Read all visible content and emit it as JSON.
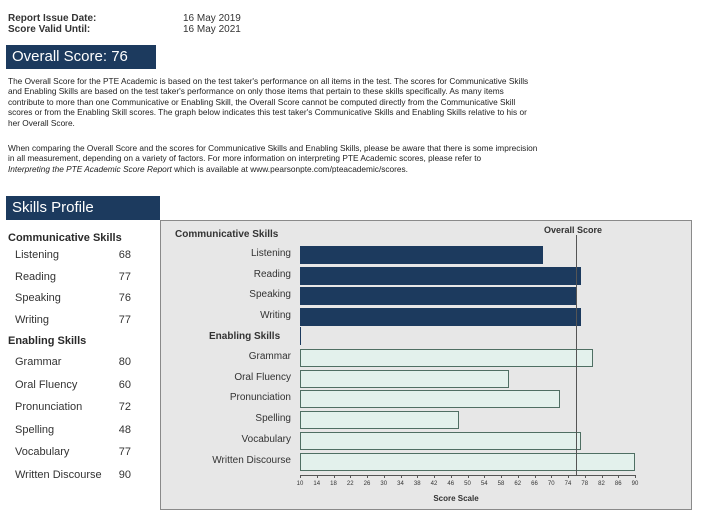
{
  "report": {
    "issue_label": "Report Issue Date:",
    "issue_value": "16 May 2019",
    "valid_label": "Score Valid Until:",
    "valid_value": "16 May 2021"
  },
  "overall": {
    "title": "Overall Score:  76",
    "para1_l1": "The Overall Score for the PTE Academic is based on the test taker's performance on all items in the test.  The scores for Communicative Skills",
    "para1_l2": "and Enabling Skills are based on the test taker's performance on only those items that pertain to these skills specifically.  As many items",
    "para1_l3": "contribute to more than one Communicative or Enabling Skill, the Overall Score cannot be computed directly from the Communicative Skill",
    "para1_l4": "scores or from the Enabling Skill scores.  The graph below indicates this test taker's Communicative Skills and Enabling Skills relative to his or",
    "para1_l5": "her Overall Score.",
    "para2_l1": "When comparing the Overall Score and the scores for Communicative Skills and Enabling Skills, please be aware that there is some imprecision",
    "para2_l2": "in all measurement, depending on a variety of factors.  For more information on interpreting PTE Academic scores, please refer to",
    "para2_l3_italic": "Interpreting the PTE Academic Score Report",
    "para2_l3_rest": " which is available at www.pearsonpte.com/pteacademic/scores."
  },
  "skills_profile": {
    "title": "Skills Profile",
    "communicative_heading": "Communicative Skills",
    "enabling_heading": "Enabling Skills",
    "communicative": [
      {
        "name": "Listening",
        "score": "68"
      },
      {
        "name": "Reading",
        "score": "77"
      },
      {
        "name": "Speaking",
        "score": "76"
      },
      {
        "name": "Writing",
        "score": "77"
      }
    ],
    "enabling": [
      {
        "name": "Grammar",
        "score": "80"
      },
      {
        "name": "Oral Fluency",
        "score": "60"
      },
      {
        "name": "Pronunciation",
        "score": "72"
      },
      {
        "name": "Spelling",
        "score": "48"
      },
      {
        "name": "Vocabulary",
        "score": "77"
      },
      {
        "name": "Written Discourse",
        "score": "90"
      }
    ]
  },
  "colors": {
    "banner": "#1c3a5e",
    "communicative_bar": "#1c3a5e",
    "enabling_bar": "#e3f1ec",
    "chart_bg": "#e7e7e7"
  },
  "chart_data": {
    "type": "bar",
    "orientation": "horizontal",
    "overall_score_label": "Overall Score",
    "overall_score": 76,
    "communicative_heading": "Communicative Skills",
    "enabling_heading": "Enabling Skills",
    "xlabel": "Score Scale",
    "xlim": [
      10,
      90
    ],
    "xticks": [
      "10",
      "14",
      "18",
      "22",
      "26",
      "30",
      "34",
      "38",
      "42",
      "46",
      "50",
      "54",
      "58",
      "62",
      "66",
      "70",
      "74",
      "78",
      "82",
      "86",
      "90"
    ],
    "communicative": [
      {
        "name": "Listening",
        "value": 68
      },
      {
        "name": "Reading",
        "value": 77
      },
      {
        "name": "Speaking",
        "value": 76
      },
      {
        "name": "Writing",
        "value": 77
      }
    ],
    "enabling": [
      {
        "name": "Grammar",
        "value": 80
      },
      {
        "name": "Oral Fluency",
        "value": 60
      },
      {
        "name": "Pronunciation",
        "value": 72
      },
      {
        "name": "Spelling",
        "value": 48
      },
      {
        "name": "Vocabulary",
        "value": 77
      },
      {
        "name": "Written Discourse",
        "value": 90
      }
    ]
  }
}
